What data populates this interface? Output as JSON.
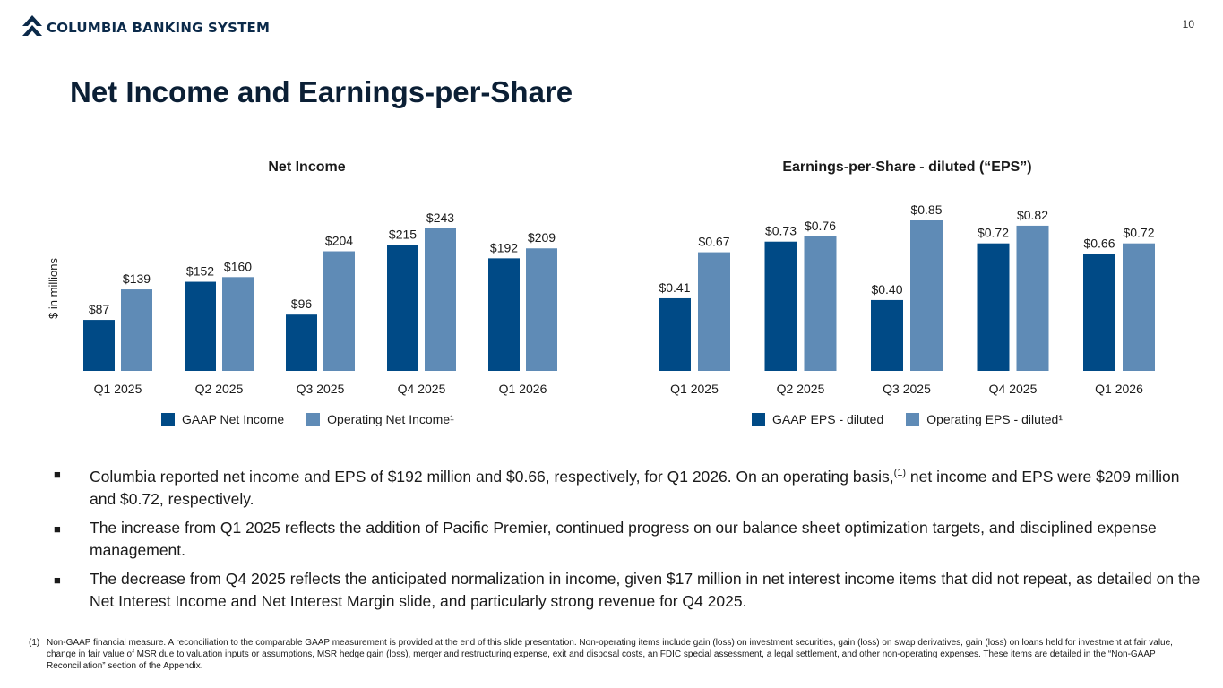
{
  "header": {
    "logo_text": "COLUMBIA BANKING SYSTEM",
    "page_number": "10",
    "title": "Net Income and Earnings-per-Share"
  },
  "colors": {
    "gaap": "#004a86",
    "operating": "#5f8bb6",
    "brand_dark": "#0b2a4a"
  },
  "chart_data": [
    {
      "type": "bar",
      "title": "Net Income",
      "ylabel": "$ in millions",
      "categories": [
        "Q1 2025",
        "Q2 2025",
        "Q3 2025",
        "Q4 2025",
        "Q1 2026"
      ],
      "series": [
        {
          "name": "GAAP Net Income",
          "values": [
            87,
            152,
            96,
            215,
            192
          ],
          "labels": [
            "$87",
            "$152",
            "$96",
            "$215",
            "$192"
          ]
        },
        {
          "name": "Operating Net Income¹",
          "values": [
            139,
            160,
            204,
            243,
            209
          ],
          "labels": [
            "$139",
            "$160",
            "$204",
            "$243",
            "$209"
          ]
        }
      ],
      "ylim": [
        0,
        250
      ],
      "grid": false,
      "legend": "bottom"
    },
    {
      "type": "bar",
      "title": "Earnings-per-Share - diluted (“EPS”)",
      "ylabel": "",
      "categories": [
        "Q1 2025",
        "Q2 2025",
        "Q3 2025",
        "Q4 2025",
        "Q1 2026"
      ],
      "series": [
        {
          "name": "GAAP EPS - diluted",
          "values": [
            0.41,
            0.73,
            0.4,
            0.72,
            0.66
          ],
          "labels": [
            "$0.41",
            "$0.73",
            "$0.40",
            "$0.72",
            "$0.66"
          ]
        },
        {
          "name": "Operating EPS - diluted¹",
          "values": [
            0.67,
            0.76,
            0.85,
            0.82,
            0.72
          ],
          "labels": [
            "$0.67",
            "$0.76",
            "$0.85",
            "$0.82",
            "$0.72"
          ]
        }
      ],
      "ylim": [
        0,
        0.87
      ],
      "grid": false,
      "legend": "bottom"
    }
  ],
  "bullets": {
    "b1_before": "Columbia reported net income and EPS of $192 million and $0.66, respectively, for Q1 2026. On an operating basis,",
    "b1_sup": "(1)",
    "b1_after": " net income and EPS were $209 million and $0.72, respectively.",
    "b2": "The increase from Q1 2025 reflects the addition of Pacific Premier, continued progress on our balance sheet optimization targets, and disciplined expense management.",
    "b3": "The decrease from Q4 2025 reflects the anticipated normalization in income, given $17 million in net interest income items that did not repeat, as detailed on the Net Interest Income and Net Interest Margin slide, and particularly strong revenue for Q4 2025."
  },
  "footnote": {
    "mark": "(1)",
    "text": "Non-GAAP financial measure. A reconciliation to the comparable GAAP measurement is provided at the end of this slide presentation. Non-operating items include gain (loss) on investment securities, gain (loss) on swap derivatives, gain (loss) on loans held for investment at fair value, change in fair value of MSR due to valuation inputs or assumptions, MSR hedge gain (loss), merger and restructuring expense, exit and disposal costs, an FDIC special assessment, a legal settlement, and other non-operating expenses. These items are detailed in the “Non-GAAP Reconciliation” section of the Appendix."
  }
}
